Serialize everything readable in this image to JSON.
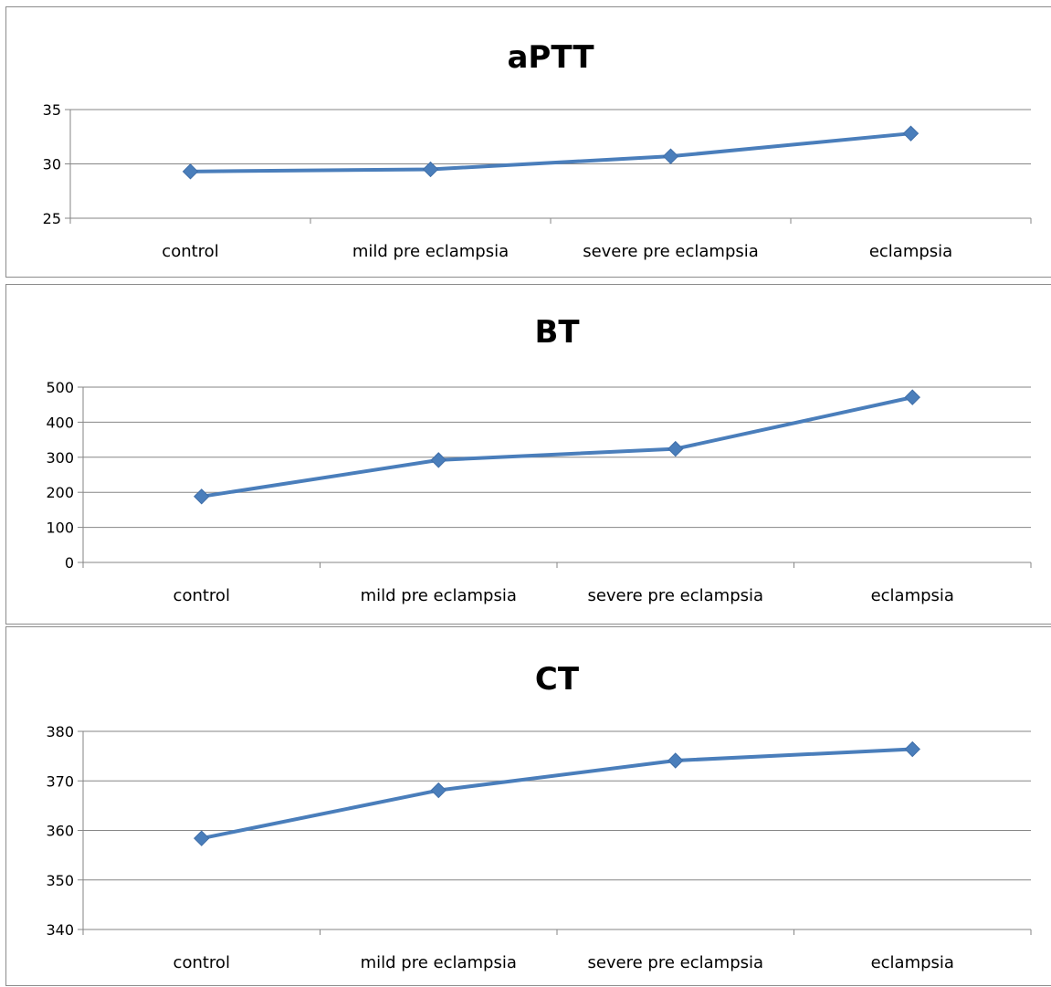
{
  "chart_data": [
    {
      "type": "line",
      "title": "aPTT",
      "categories": [
        "control",
        "mild pre eclampsia",
        "severe pre eclampsia",
        "eclampsia"
      ],
      "values": [
        29.3,
        29.5,
        30.7,
        32.8
      ],
      "ylim": [
        25,
        35
      ],
      "yticks": [
        25,
        30,
        35
      ],
      "grid": true,
      "color": "#4a7ebb",
      "marker": "diamond"
    },
    {
      "type": "line",
      "title": "BT",
      "categories": [
        "control",
        "mild pre eclampsia",
        "severe pre eclampsia",
        "eclampsia"
      ],
      "values": [
        188,
        292,
        324,
        471
      ],
      "ylim": [
        0,
        500
      ],
      "yticks": [
        0,
        100,
        200,
        300,
        400,
        500
      ],
      "grid": true,
      "color": "#4a7ebb",
      "marker": "diamond"
    },
    {
      "type": "line",
      "title": "CT",
      "categories": [
        "control",
        "mild pre eclampsia",
        "severe pre eclampsia",
        "eclampsia"
      ],
      "values": [
        358.4,
        368.1,
        374.1,
        376.4
      ],
      "ylim": [
        340,
        380
      ],
      "yticks": [
        340,
        350,
        360,
        370,
        380
      ],
      "grid": true,
      "color": "#4a7ebb",
      "marker": "diamond"
    }
  ]
}
